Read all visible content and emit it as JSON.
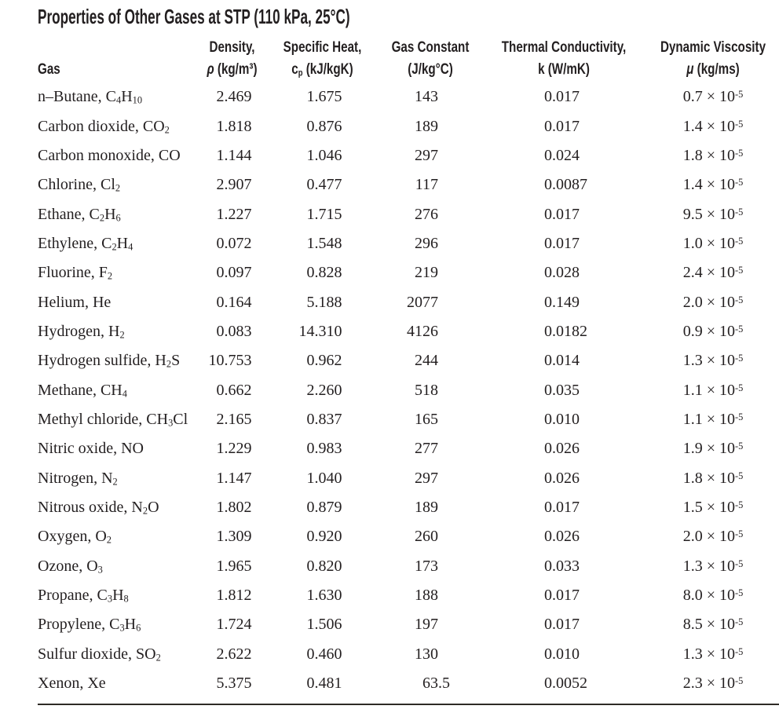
{
  "title": "Properties of Other Gases at STP (110 kPa, 25°C)",
  "colors": {
    "text": "#231f20",
    "rule": "#2e2a26",
    "background": "#ffffff"
  },
  "table": {
    "columns": [
      {
        "id": "gas",
        "label_lines": [
          "Gas"
        ]
      },
      {
        "id": "density",
        "label_lines": [
          "Density,",
          "ρ (kg/m³)"
        ]
      },
      {
        "id": "specific_heat",
        "label_lines": [
          "Specific Heat,",
          "cₚ (kJ/kgK)"
        ]
      },
      {
        "id": "gas_constant",
        "label_lines": [
          "Gas Constant",
          "(J/kg°C)"
        ]
      },
      {
        "id": "thermal_conductivity",
        "label_lines": [
          "Thermal Conductivity,",
          "k (W/mK)"
        ]
      },
      {
        "id": "dynamic_viscosity",
        "label_lines": [
          "Dynamic Viscosity",
          "μ (kg/ms)"
        ]
      }
    ],
    "rows": [
      {
        "gas": "n–Butane, C₄H₁₀",
        "density": "2.469",
        "specific_heat": "1.675",
        "gas_constant": "143",
        "thermal_conductivity": "0.017",
        "dynamic_viscosity": "0.7 × 10⁻⁵"
      },
      {
        "gas": "Carbon dioxide, CO₂",
        "density": "1.818",
        "specific_heat": "0.876",
        "gas_constant": "189",
        "thermal_conductivity": "0.017",
        "dynamic_viscosity": "1.4 × 10⁻⁵"
      },
      {
        "gas": "Carbon monoxide, CO",
        "density": "1.144",
        "specific_heat": "1.046",
        "gas_constant": "297",
        "thermal_conductivity": "0.024",
        "dynamic_viscosity": "1.8 × 10⁻⁵"
      },
      {
        "gas": "Chlorine, Cl₂",
        "density": "2.907",
        "specific_heat": "0.477",
        "gas_constant": "117",
        "thermal_conductivity": "0.0087",
        "dynamic_viscosity": "1.4 × 10⁻⁵"
      },
      {
        "gas": "Ethane, C₂H₆",
        "density": "1.227",
        "specific_heat": "1.715",
        "gas_constant": "276",
        "thermal_conductivity": "0.017",
        "dynamic_viscosity": "9.5 × 10⁻⁵"
      },
      {
        "gas": "Ethylene, C₂H₄",
        "density": "0.072",
        "specific_heat": "1.548",
        "gas_constant": "296",
        "thermal_conductivity": "0.017",
        "dynamic_viscosity": "1.0 × 10⁻⁵"
      },
      {
        "gas": "Fluorine, F₂",
        "density": "0.097",
        "specific_heat": "0.828",
        "gas_constant": "219",
        "thermal_conductivity": "0.028",
        "dynamic_viscosity": "2.4 × 10⁻⁵"
      },
      {
        "gas": "Helium, He",
        "density": "0.164",
        "specific_heat": "5.188",
        "gas_constant": "2077",
        "thermal_conductivity": "0.149",
        "dynamic_viscosity": "2.0 × 10⁻⁵"
      },
      {
        "gas": "Hydrogen, H₂",
        "density": "0.083",
        "specific_heat": "14.310",
        "gas_constant": "4126",
        "thermal_conductivity": "0.0182",
        "dynamic_viscosity": "0.9 × 10⁻⁵"
      },
      {
        "gas": "Hydrogen sulfide, H₂S",
        "density": "10.753",
        "specific_heat": "0.962",
        "gas_constant": "244",
        "thermal_conductivity": "0.014",
        "dynamic_viscosity": "1.3 × 10⁻⁵"
      },
      {
        "gas": "Methane, CH₄",
        "density": "0.662",
        "specific_heat": "2.260",
        "gas_constant": "518",
        "thermal_conductivity": "0.035",
        "dynamic_viscosity": "1.1 × 10⁻⁵"
      },
      {
        "gas": "Methyl chloride, CH₃Cl",
        "density": "2.165",
        "specific_heat": "0.837",
        "gas_constant": "165",
        "thermal_conductivity": "0.010",
        "dynamic_viscosity": "1.1 × 10⁻⁵"
      },
      {
        "gas": "Nitric oxide, NO",
        "density": "1.229",
        "specific_heat": "0.983",
        "gas_constant": "277",
        "thermal_conductivity": "0.026",
        "dynamic_viscosity": "1.9 × 10⁻⁵"
      },
      {
        "gas": "Nitrogen, N₂",
        "density": "1.147",
        "specific_heat": "1.040",
        "gas_constant": "297",
        "thermal_conductivity": "0.026",
        "dynamic_viscosity": "1.8 × 10⁻⁵"
      },
      {
        "gas": "Nitrous oxide, N₂O",
        "density": "1.802",
        "specific_heat": "0.879",
        "gas_constant": "189",
        "thermal_conductivity": "0.017",
        "dynamic_viscosity": "1.5 × 10⁻⁵"
      },
      {
        "gas": "Oxygen, O₂",
        "density": "1.309",
        "specific_heat": "0.920",
        "gas_constant": "260",
        "thermal_conductivity": "0.026",
        "dynamic_viscosity": "2.0 × 10⁻⁵"
      },
      {
        "gas": "Ozone, O₃",
        "density": "1.965",
        "specific_heat": "0.820",
        "gas_constant": "173",
        "thermal_conductivity": "0.033",
        "dynamic_viscosity": "1.3 × 10⁻⁵"
      },
      {
        "gas": "Propane, C₃H₈",
        "density": "1.812",
        "specific_heat": "1.630",
        "gas_constant": "188",
        "thermal_conductivity": "0.017",
        "dynamic_viscosity": "8.0 × 10⁻⁵"
      },
      {
        "gas": "Propylene, C₃H₆",
        "density": "1.724",
        "specific_heat": "1.506",
        "gas_constant": "197",
        "thermal_conductivity": "0.017",
        "dynamic_viscosity": "8.5 × 10⁻⁵"
      },
      {
        "gas": "Sulfur dioxide, SO₂",
        "density": "2.622",
        "specific_heat": "0.460",
        "gas_constant": "130",
        "thermal_conductivity": "0.010",
        "dynamic_viscosity": "1.3 × 10⁻⁵"
      },
      {
        "gas": "Xenon, Xe",
        "density": "5.375",
        "specific_heat": "0.481",
        "gas_constant": "63.5",
        "thermal_conductivity": "0.0052",
        "dynamic_viscosity": "2.3 × 10⁻⁵"
      }
    ]
  }
}
